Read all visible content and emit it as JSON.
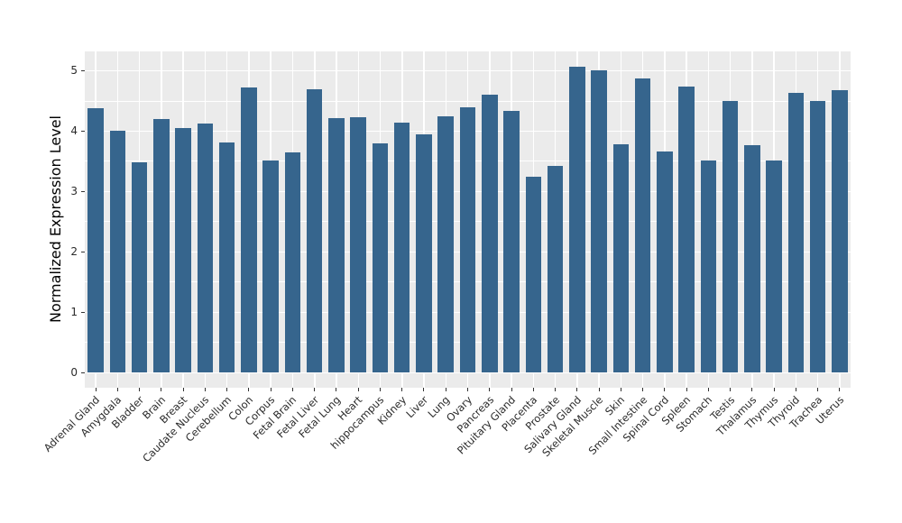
{
  "chart_data": {
    "type": "bar",
    "title": "",
    "xlabel": "",
    "ylabel": "Normalized Expression Level",
    "legend": "none",
    "grid": "on",
    "categories": [
      "Adrenal Gland",
      "Amygdala",
      "Bladder",
      "Brain",
      "Breast",
      "Caudate Nucleus",
      "Cerebellum",
      "Colon",
      "Corpus",
      "Fetal Brain",
      "Fetal Liver",
      "Fetal Lung",
      "Heart",
      "hippocampus",
      "Kidney",
      "Liver",
      "Lung",
      "Ovary",
      "Pancreas",
      "Pituitary Gland",
      "Placenta",
      "Prostate",
      "Salivary Gland",
      "Skeletal Muscle",
      "Skin",
      "Small Intestine",
      "Spinal Cord",
      "Spleen",
      "Stomach",
      "Testis",
      "Thalamus",
      "Thymus",
      "Thyroid",
      "Trachea",
      "Uterus"
    ],
    "values": [
      4.38,
      4.0,
      3.48,
      4.2,
      4.05,
      4.12,
      3.81,
      4.72,
      3.52,
      3.65,
      4.69,
      4.22,
      4.23,
      3.8,
      4.14,
      3.95,
      4.24,
      4.39,
      4.61,
      4.34,
      3.25,
      3.43,
      5.07,
      5.0,
      3.78,
      4.87,
      3.66,
      4.74,
      3.51,
      4.5,
      3.77,
      3.51,
      4.64,
      4.5,
      4.68
    ],
    "yticks": [
      0,
      1,
      2,
      3,
      4,
      5
    ],
    "minor_gridlines": [
      0.5,
      1.5,
      2.5,
      3.5,
      4.5
    ],
    "ylim": [
      0,
      5.07
    ],
    "ylim_display": [
      -0.25,
      5.32
    ],
    "bar_color": "#36658D",
    "panel_bg": "#EBEBEB",
    "grid_color": "#FFFFFF",
    "tick_color": "#333333",
    "text_color": "#2b2b2b"
  }
}
